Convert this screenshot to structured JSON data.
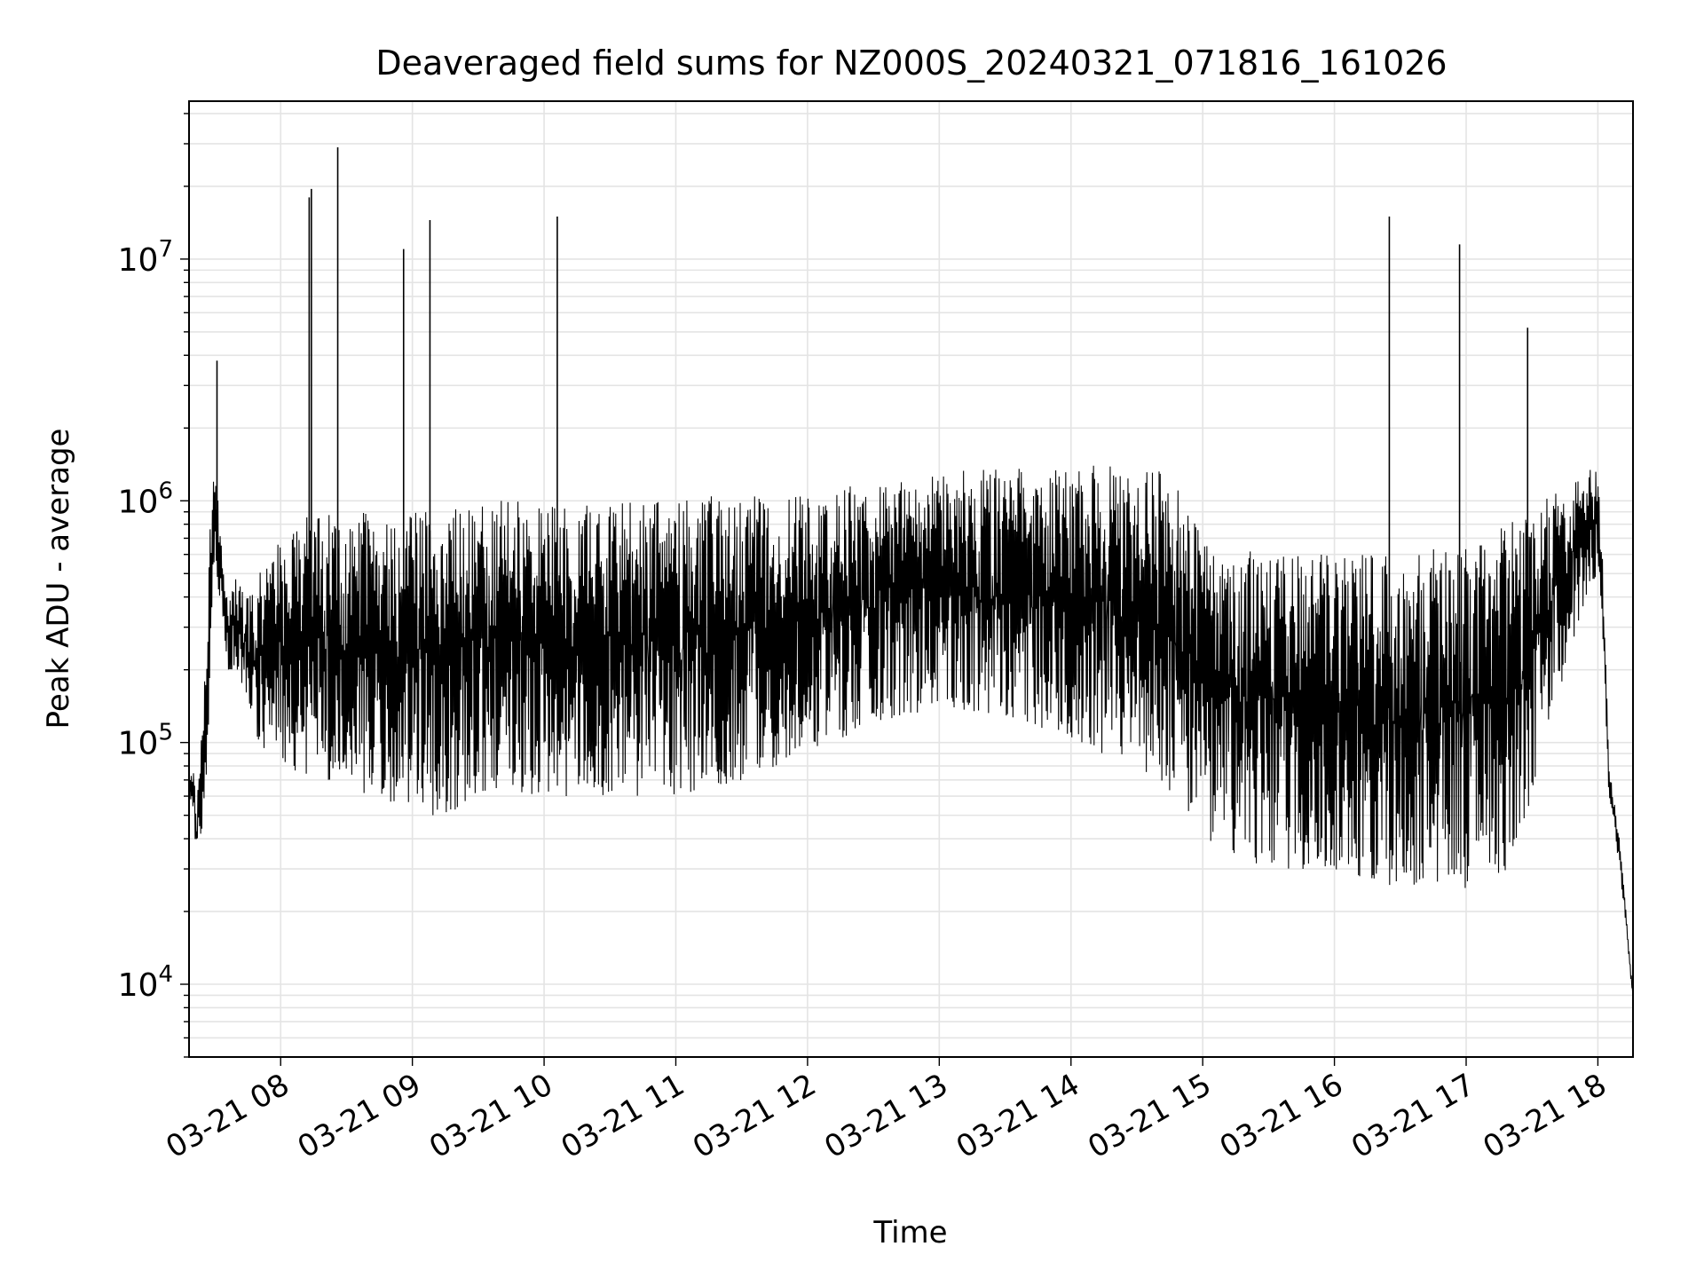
{
  "chart_data": {
    "type": "line",
    "title": "Deaveraged field sums for NZ000S_20240321_071816_161026",
    "xlabel": "Time",
    "ylabel": "Peak ADU - average",
    "x_type": "datetime",
    "xlim": [
      "2024-03-21 07:18:16",
      "2024-03-21 18:16:00"
    ],
    "y_scale": "log",
    "ylim": [
      5000,
      45000000
    ],
    "grid": true,
    "line_color": "#000000",
    "x_ticks": [
      {
        "value": "2024-03-21 08:00",
        "label": "03-21 08"
      },
      {
        "value": "2024-03-21 09:00",
        "label": "03-21 09"
      },
      {
        "value": "2024-03-21 10:00",
        "label": "03-21 10"
      },
      {
        "value": "2024-03-21 11:00",
        "label": "03-21 11"
      },
      {
        "value": "2024-03-21 12:00",
        "label": "03-21 12"
      },
      {
        "value": "2024-03-21 13:00",
        "label": "03-21 13"
      },
      {
        "value": "2024-03-21 14:00",
        "label": "03-21 14"
      },
      {
        "value": "2024-03-21 15:00",
        "label": "03-21 15"
      },
      {
        "value": "2024-03-21 16:00",
        "label": "03-21 16"
      },
      {
        "value": "2024-03-21 17:00",
        "label": "03-21 17"
      },
      {
        "value": "2024-03-21 18:00",
        "label": "03-21 18"
      }
    ],
    "y_ticks": [
      {
        "value": 10000,
        "base": "10",
        "exp": "4"
      },
      {
        "value": 100000,
        "base": "10",
        "exp": "5"
      },
      {
        "value": 1000000,
        "base": "10",
        "exp": "6"
      },
      {
        "value": 10000000,
        "base": "10",
        "exp": "7"
      }
    ],
    "series": [
      {
        "x": [
          "2024-03-21 07:18",
          "2024-03-21 07:20",
          "2024-03-21 07:22",
          "2024-03-21 07:24",
          "2024-03-21 07:26",
          "2024-03-21 07:28",
          "2024-03-21 07:30",
          "2024-03-21 07:32",
          "2024-03-21 07:34",
          "2024-03-21 07:36",
          "2024-03-21 07:40",
          "2024-03-21 07:45",
          "2024-03-21 07:50",
          "2024-03-21 08:00",
          "2024-03-21 08:15",
          "2024-03-21 08:30",
          "2024-03-21 08:45",
          "2024-03-21 09:00",
          "2024-03-21 09:15",
          "2024-03-21 09:30",
          "2024-03-21 10:00",
          "2024-03-21 10:30",
          "2024-03-21 11:00",
          "2024-03-21 11:30",
          "2024-03-21 12:00",
          "2024-03-21 12:30",
          "2024-03-21 13:00",
          "2024-03-21 13:30",
          "2024-03-21 14:00",
          "2024-03-21 14:30",
          "2024-03-21 14:45",
          "2024-03-21 15:00",
          "2024-03-21 15:30",
          "2024-03-21 16:00",
          "2024-03-21 16:30",
          "2024-03-21 17:00",
          "2024-03-21 17:20",
          "2024-03-21 17:30",
          "2024-03-21 17:45",
          "2024-03-21 17:55",
          "2024-03-21 18:00",
          "2024-03-21 18:02",
          "2024-03-21 18:05",
          "2024-03-21 18:10",
          "2024-03-21 18:16"
        ],
        "low": [
          60000,
          50000,
          30000,
          40000,
          50000,
          200000,
          500000,
          400000,
          300000,
          200000,
          200000,
          150000,
          100000,
          80000,
          70000,
          60000,
          60000,
          50000,
          50000,
          60000,
          60000,
          60000,
          60000,
          70000,
          90000,
          120000,
          140000,
          130000,
          100000,
          80000,
          60000,
          40000,
          30000,
          30000,
          25000,
          25000,
          30000,
          60000,
          200000,
          400000,
          500000,
          300000,
          60000,
          30000,
          8500
        ],
        "high": [
          70000,
          80000,
          60000,
          150000,
          200000,
          1000000,
          1300000,
          1000000,
          500000,
          400000,
          500000,
          400000,
          500000,
          700000,
          900000,
          900000,
          900000,
          900000,
          900000,
          1000000,
          1000000,
          1000000,
          1000000,
          1100000,
          1100000,
          1200000,
          1300000,
          1400000,
          1400000,
          1400000,
          1300000,
          700000,
          600000,
          600000,
          600000,
          700000,
          800000,
          1000000,
          1200000,
          1400000,
          1300000,
          700000,
          80000,
          40000,
          9000
        ]
      }
    ],
    "spikes": [
      {
        "x": "2024-03-21 07:31",
        "value": 3800000
      },
      {
        "x": "2024-03-21 08:13",
        "value": 18000000
      },
      {
        "x": "2024-03-21 08:14",
        "value": 19500000
      },
      {
        "x": "2024-03-21 08:26",
        "value": 29000000
      },
      {
        "x": "2024-03-21 08:56",
        "value": 11000000
      },
      {
        "x": "2024-03-21 09:08",
        "value": 14500000
      },
      {
        "x": "2024-03-21 10:06",
        "value": 15000000
      },
      {
        "x": "2024-03-21 16:25",
        "value": 15000000
      },
      {
        "x": "2024-03-21 16:57",
        "value": 11500000
      },
      {
        "x": "2024-03-21 17:28",
        "value": 5200000
      }
    ]
  }
}
